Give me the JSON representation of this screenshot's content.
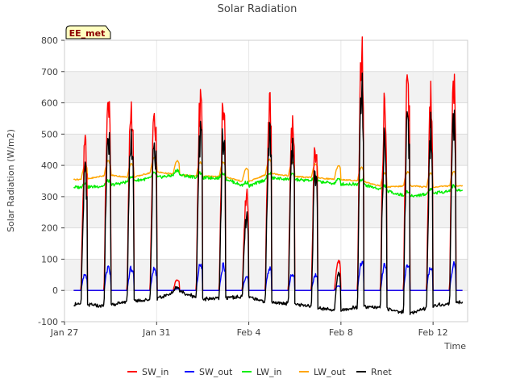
{
  "chart_data": {
    "type": "line",
    "title": "Solar Radiation",
    "xlabel": "Time",
    "ylabel": "Solar Radiation (W/m2)",
    "site_label": "EE_met",
    "x_unit": "days since Jan 27",
    "xlim": [
      0,
      17.5
    ],
    "ylim": [
      -100,
      800
    ],
    "yticks": [
      -100,
      0,
      100,
      200,
      300,
      400,
      500,
      600,
      700,
      800
    ],
    "xticks": [
      {
        "pos": 0,
        "label": "Jan 27"
      },
      {
        "pos": 4,
        "label": "Jan 31"
      },
      {
        "pos": 8,
        "label": "Feb 4"
      },
      {
        "pos": 12,
        "label": "Feb 8"
      },
      {
        "pos": 16,
        "label": "Feb 12"
      }
    ],
    "grid": true,
    "legend_position": "bottom",
    "day_peaks": {
      "days": [
        0.9,
        1.9,
        2.9,
        3.9,
        4.9,
        5.9,
        6.9,
        7.9,
        8.9,
        9.9,
        10.9,
        11.9,
        12.9,
        13.9,
        14.9,
        15.9,
        16.9
      ],
      "SW_in_peak": [
        455,
        600,
        590,
        590,
        35,
        595,
        590,
        300,
        600,
        540,
        460,
        100,
        765,
        590,
        675,
        595,
        655
      ],
      "SW_out_peak": [
        50,
        70,
        70,
        70,
        5,
        80,
        80,
        40,
        70,
        55,
        50,
        15,
        90,
        80,
        85,
        75,
        80
      ],
      "LW_in_level": [
        330,
        335,
        350,
        360,
        370,
        360,
        360,
        330,
        360,
        355,
        350,
        340,
        340,
        320,
        300,
        310,
        320
      ],
      "LW_out_level": [
        355,
        370,
        360,
        380,
        370,
        365,
        365,
        345,
        375,
        365,
        360,
        355,
        350,
        330,
        335,
        330,
        335
      ],
      "Rnet_night": [
        -30,
        -30,
        -25,
        -20,
        0,
        -25,
        -20,
        -10,
        -30,
        -35,
        -50,
        -55,
        -45,
        -50,
        -55,
        -40,
        -30
      ]
    },
    "series": [
      {
        "name": "SW_in",
        "color": "#ff0000"
      },
      {
        "name": "SW_out",
        "color": "#0000ff"
      },
      {
        "name": "LW_in",
        "color": "#00ee00"
      },
      {
        "name": "LW_out",
        "color": "#ffa500"
      },
      {
        "name": "Rnet",
        "color": "#000000"
      }
    ]
  }
}
